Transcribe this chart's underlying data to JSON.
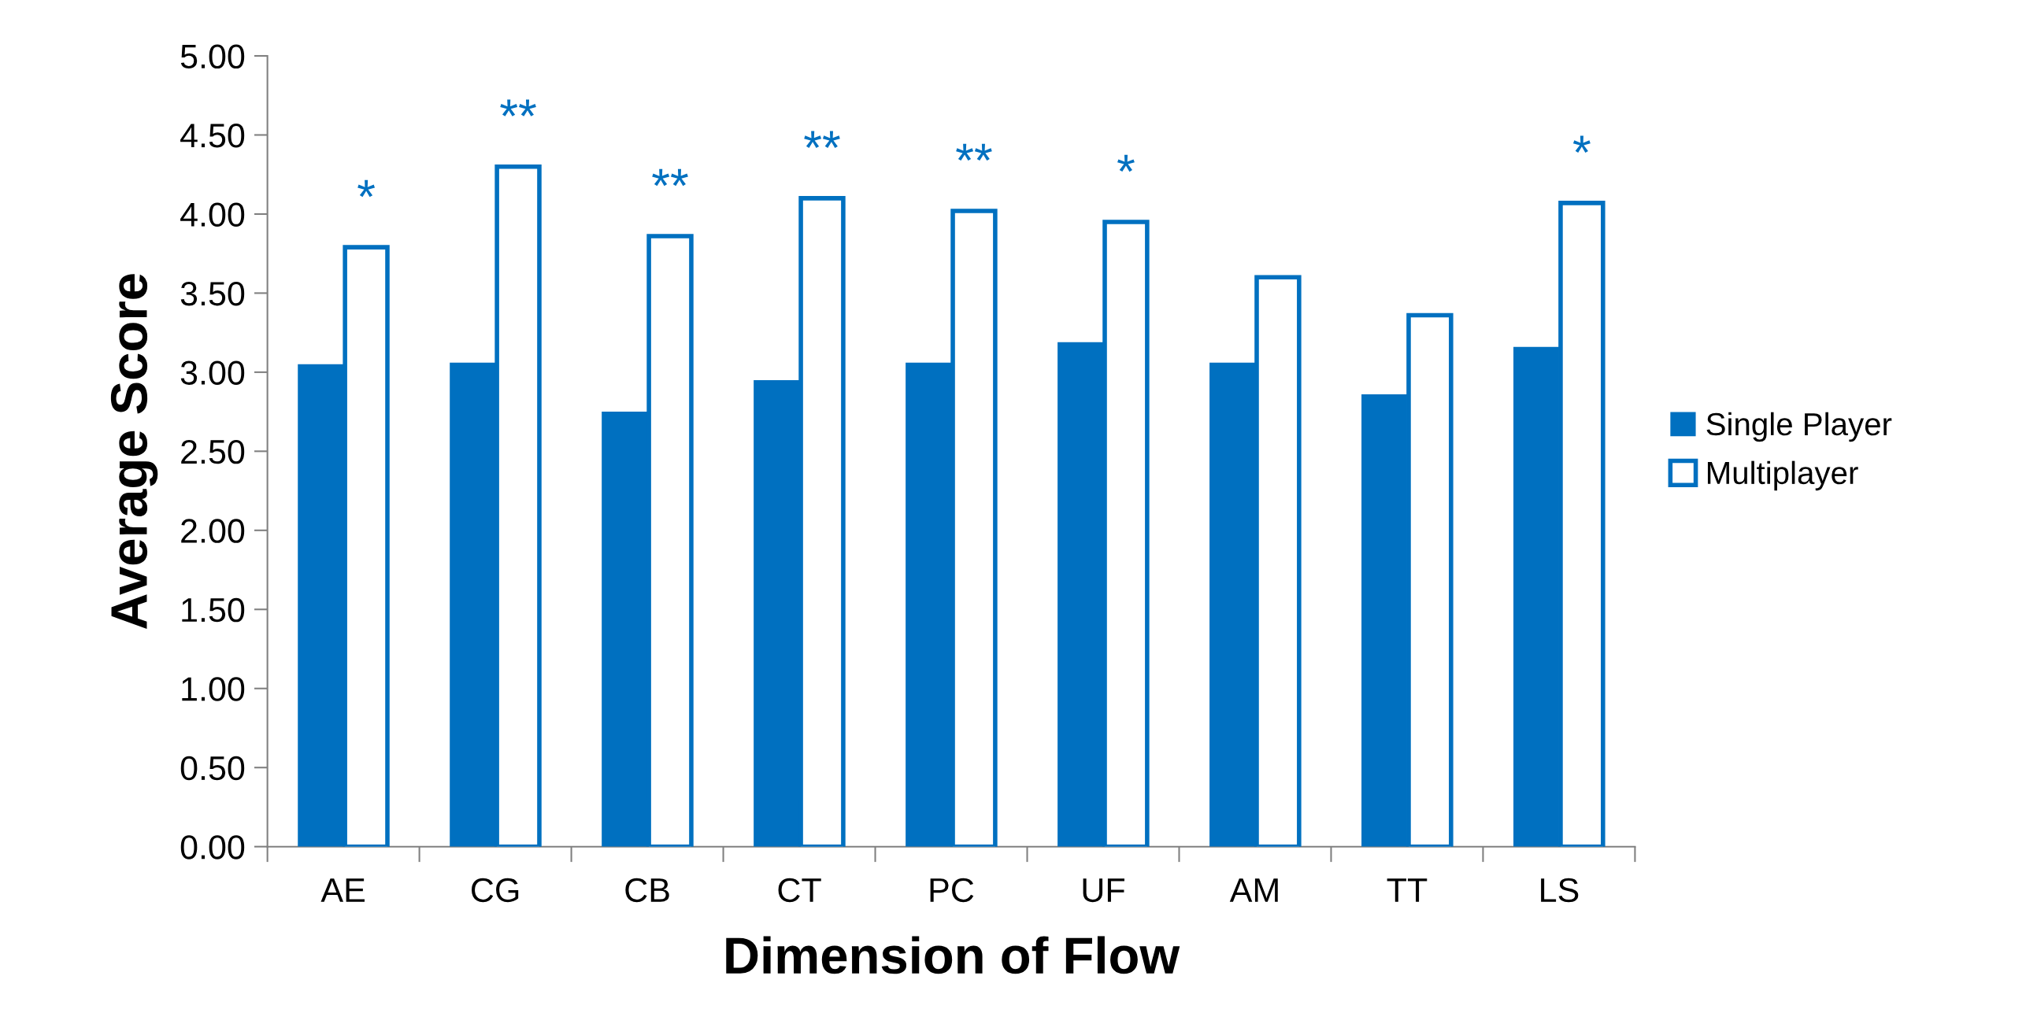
{
  "chart_data": {
    "type": "bar",
    "xlabel": "Dimension of Flow",
    "ylabel": "Average Score",
    "categories": [
      "AE",
      "CG",
      "CB",
      "CT",
      "PC",
      "UF",
      "AM",
      "TT",
      "LS"
    ],
    "series": [
      {
        "name": "Single Player",
        "color": "#0070c0",
        "values": [
          3.05,
          3.06,
          2.75,
          2.95,
          3.06,
          3.19,
          3.06,
          2.86,
          3.16
        ]
      },
      {
        "name": "Multiplayer",
        "color": "#0070c0",
        "values": [
          3.79,
          4.3,
          3.86,
          4.1,
          4.02,
          3.95,
          3.6,
          3.36,
          4.07
        ]
      }
    ],
    "ylim": [
      0,
      5
    ],
    "yticks": [
      {
        "value": 0,
        "label": "0.00"
      },
      {
        "value": 0.5,
        "label": "0.50"
      },
      {
        "value": 1,
        "label": "1.00"
      },
      {
        "value": 1.5,
        "label": "1.50"
      },
      {
        "value": 2,
        "label": "2.00"
      },
      {
        "value": 2.5,
        "label": "2.50"
      },
      {
        "value": 3,
        "label": "3.00"
      },
      {
        "value": 3.5,
        "label": "3.50"
      },
      {
        "value": 4,
        "label": "4.00"
      },
      {
        "value": 4.5,
        "label": "4.50"
      },
      {
        "value": 5,
        "label": "5.00"
      }
    ],
    "grid": false,
    "legend": "right",
    "annotations": [
      {
        "text": "*",
        "x": "AE",
        "y": 3.79
      },
      {
        "text": "**",
        "x": "CG",
        "y": 4.3
      },
      {
        "text": "**",
        "x": "CB",
        "y": 3.86
      },
      {
        "text": "**",
        "x": "CT",
        "y": 4.1
      },
      {
        "text": "**",
        "x": "PC",
        "y": 4.02
      },
      {
        "text": "*",
        "x": "UF",
        "y": 3.95
      },
      {
        "text": "*",
        "x": "LS",
        "y": 4.07
      }
    ]
  }
}
